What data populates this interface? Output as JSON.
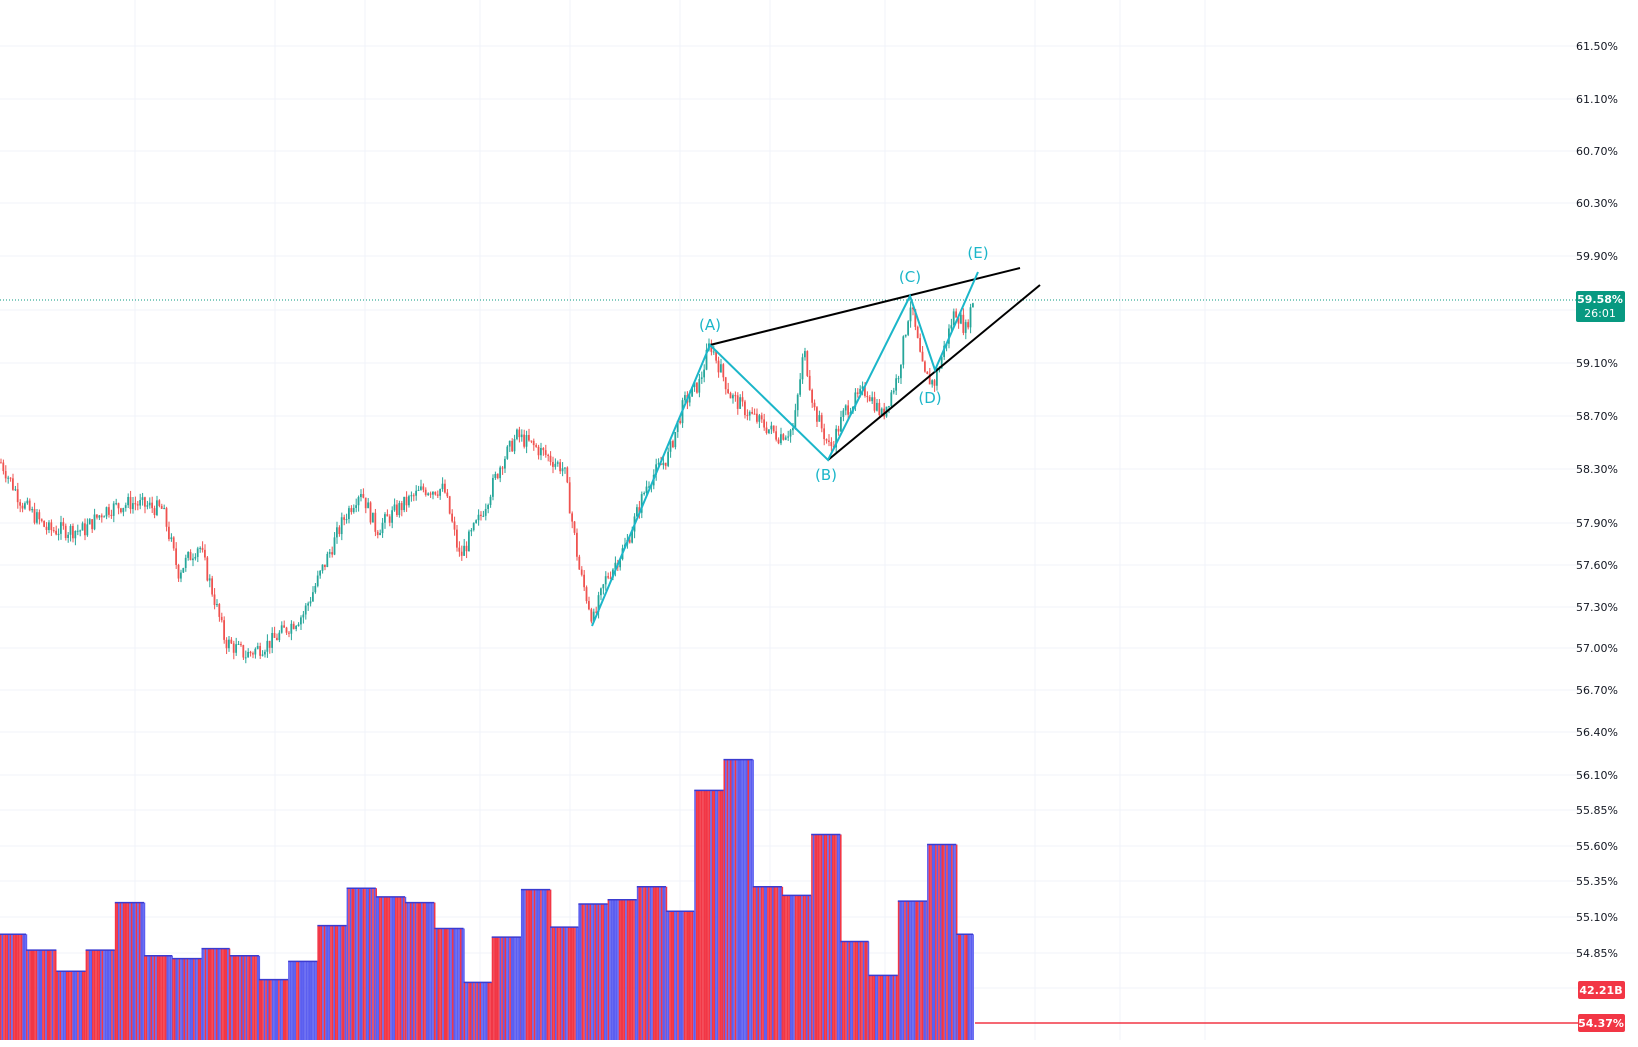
{
  "colors": {
    "up": "#26a69a",
    "down": "#ef5350",
    "wave": "#1bb6c9",
    "trendline": "#000000",
    "last_price_tag": "#089981",
    "volume_tag": "#f23645",
    "volume_blue": "#5b5ef0",
    "volume_red": "#f23645",
    "grid": "#f0f3fa"
  },
  "chart_data": {
    "type": "candlestick",
    "price_axis_ticks": [
      "61.50%",
      "61.10%",
      "60.70%",
      "60.30%",
      "59.90%",
      "59.10%",
      "58.70%",
      "58.30%",
      "57.90%",
      "57.60%",
      "57.30%",
      "57.00%",
      "56.70%",
      "56.40%"
    ],
    "volume_axis_ticks": [
      "56.10%",
      "55.85%",
      "55.60%",
      "55.35%",
      "55.10%",
      "54.85%"
    ],
    "last_price": {
      "value": "59.58%",
      "countdown": "26:01"
    },
    "volume_label": "42.21B",
    "red_line_label": "54.37%",
    "wave_labels": [
      "(A)",
      "(B)",
      "(C)",
      "(D)",
      "(E)"
    ],
    "price_path_anchors": [
      [
        0,
        58.35
      ],
      [
        20,
        58.05
      ],
      [
        45,
        57.85
      ],
      [
        80,
        57.85
      ],
      [
        100,
        58.0
      ],
      [
        125,
        58.05
      ],
      [
        155,
        58.0
      ],
      [
        170,
        57.55
      ],
      [
        190,
        57.75
      ],
      [
        205,
        57.35
      ],
      [
        215,
        57.05
      ],
      [
        235,
        56.95
      ],
      [
        260,
        57.05
      ],
      [
        290,
        57.25
      ],
      [
        310,
        57.6
      ],
      [
        330,
        57.95
      ],
      [
        345,
        58.15
      ],
      [
        360,
        57.85
      ],
      [
        380,
        58.0
      ],
      [
        405,
        58.15
      ],
      [
        425,
        58.15
      ],
      [
        440,
        57.65
      ],
      [
        460,
        57.95
      ],
      [
        480,
        58.35
      ],
      [
        495,
        58.55
      ],
      [
        515,
        58.45
      ],
      [
        540,
        58.3
      ],
      [
        555,
        57.55
      ],
      [
        568,
        57.2
      ],
      [
        580,
        57.5
      ],
      [
        600,
        57.75
      ],
      [
        620,
        58.2
      ],
      [
        640,
        58.4
      ],
      [
        655,
        58.8
      ],
      [
        670,
        58.95
      ],
      [
        680,
        59.25
      ],
      [
        700,
        58.85
      ],
      [
        720,
        58.7
      ],
      [
        745,
        58.55
      ],
      [
        760,
        58.6
      ],
      [
        770,
        59.2
      ],
      [
        780,
        58.75
      ],
      [
        795,
        58.45
      ],
      [
        810,
        58.75
      ],
      [
        830,
        58.9
      ],
      [
        845,
        58.7
      ],
      [
        860,
        59.0
      ],
      [
        872,
        59.55
      ],
      [
        885,
        59.0
      ],
      [
        895,
        58.95
      ],
      [
        915,
        59.5
      ],
      [
        925,
        59.35
      ],
      [
        933,
        59.6
      ]
    ],
    "volume_levels": [
      [
        0,
        25,
        54.98
      ],
      [
        25,
        54,
        54.87
      ],
      [
        54,
        82,
        54.72
      ],
      [
        82,
        110,
        54.87
      ],
      [
        110,
        138,
        55.2
      ],
      [
        138,
        165,
        54.83
      ],
      [
        165,
        193,
        54.81
      ],
      [
        193,
        220,
        54.88
      ],
      [
        220,
        248,
        54.83
      ],
      [
        248,
        276,
        54.66
      ],
      [
        276,
        304,
        54.79
      ],
      [
        304,
        332,
        55.04
      ],
      [
        332,
        360,
        55.3
      ],
      [
        360,
        388,
        55.24
      ],
      [
        388,
        416,
        55.2
      ],
      [
        416,
        444,
        55.02
      ],
      [
        444,
        471,
        54.64
      ],
      [
        471,
        499,
        54.96
      ],
      [
        499,
        527,
        55.29
      ],
      [
        527,
        554,
        55.03
      ],
      [
        554,
        582,
        55.19
      ],
      [
        582,
        610,
        55.22
      ],
      [
        610,
        638,
        55.31
      ],
      [
        638,
        665,
        55.14
      ],
      [
        665,
        693,
        55.99
      ],
      [
        693,
        721,
        56.21
      ],
      [
        721,
        749,
        55.31
      ],
      [
        749,
        777,
        55.25
      ],
      [
        777,
        805,
        55.68
      ],
      [
        805,
        832,
        54.93
      ],
      [
        832,
        860,
        54.69
      ],
      [
        860,
        888,
        55.21
      ],
      [
        888,
        916,
        55.61
      ],
      [
        916,
        932,
        54.98
      ]
    ]
  }
}
